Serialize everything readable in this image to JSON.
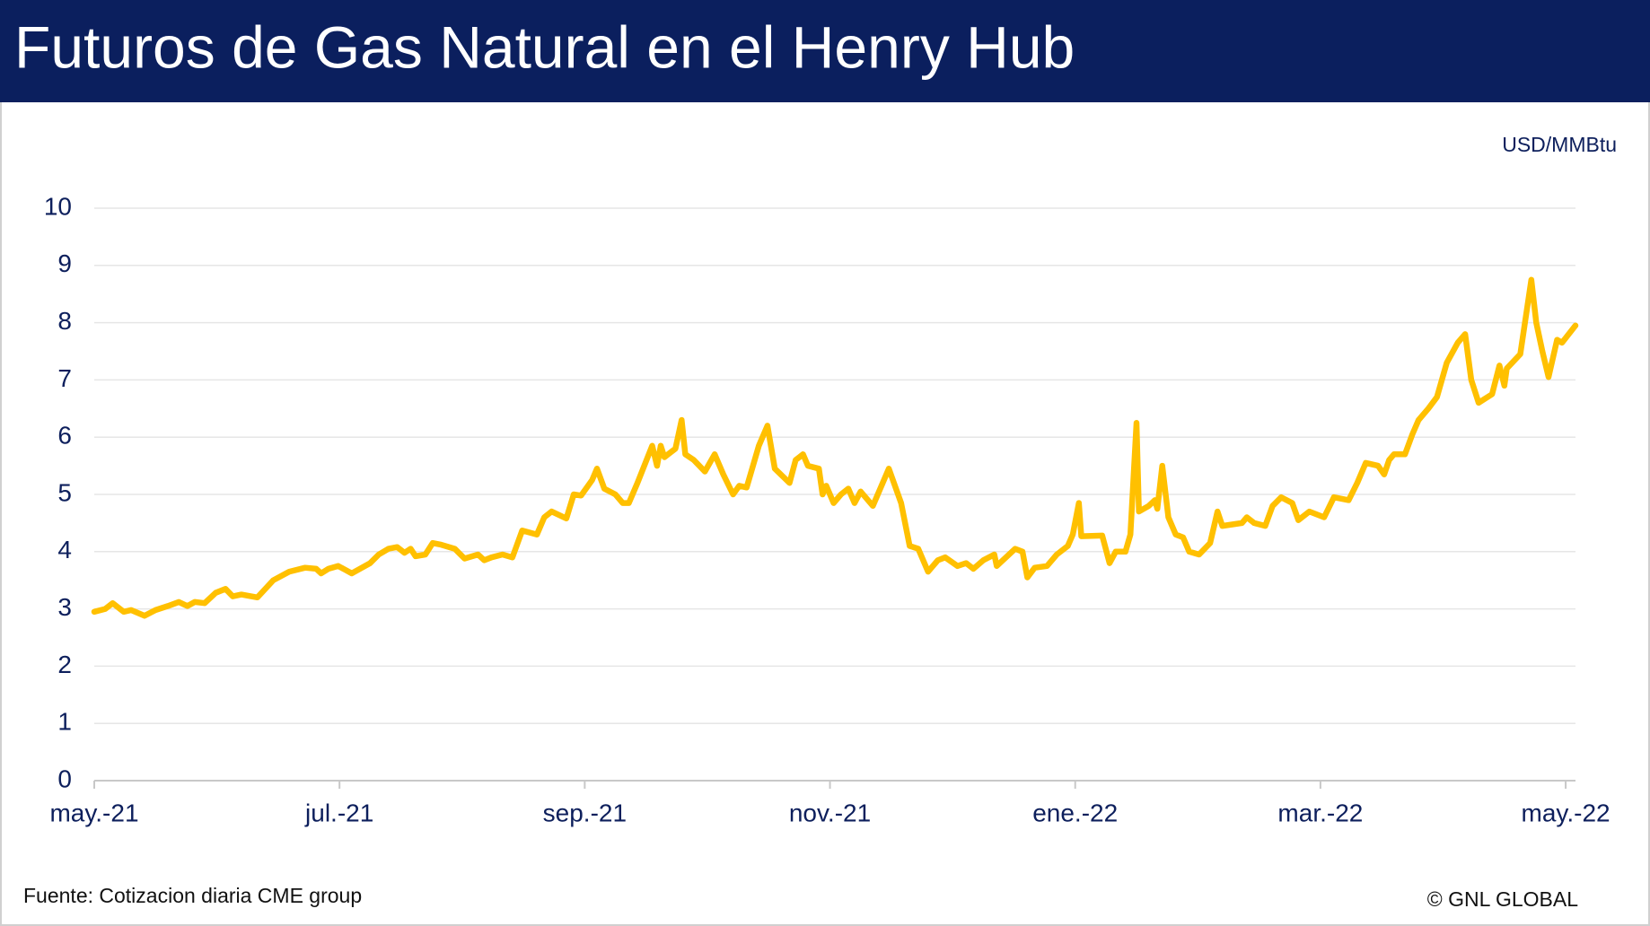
{
  "chart_data": {
    "type": "line",
    "title": "Futuros de Gas Natural en el Henry Hub",
    "unit_label": "USD/MMBtu",
    "source": "Fuente: Cotizacion diaria CME group",
    "credit": "© GNL GLOBAL",
    "color": "#FFC000",
    "grid": true,
    "x": [
      0,
      0.09,
      0.15,
      0.24,
      0.3,
      0.41,
      0.5,
      0.6,
      0.69,
      0.76,
      0.82,
      0.9,
      0.99,
      1.07,
      1.13,
      1.2,
      1.33,
      1.46,
      1.59,
      1.72,
      1.81,
      1.85,
      1.91,
      1.99,
      2.1,
      2.25,
      2.32,
      2.4,
      2.47,
      2.53,
      2.58,
      2.62,
      2.7,
      2.76,
      2.83,
      2.94,
      3.02,
      3.13,
      3.18,
      3.24,
      3.33,
      3.41,
      3.49,
      3.61,
      3.67,
      3.73,
      3.85,
      3.91,
      3.97,
      4.06,
      4.1,
      4.16,
      4.25,
      4.31,
      4.36,
      4.43,
      4.55,
      4.59,
      4.62,
      4.65,
      4.74,
      4.79,
      4.82,
      4.89,
      4.98,
      5.06,
      5.13,
      5.21,
      5.26,
      5.32,
      5.42,
      5.49,
      5.55,
      5.67,
      5.72,
      5.78,
      5.82,
      5.91,
      5.94,
      5.97,
      6.03,
      6.09,
      6.15,
      6.2,
      6.25,
      6.35,
      6.48,
      6.58,
      6.65,
      6.72,
      6.8,
      6.88,
      6.94,
      7.04,
      7.11,
      7.17,
      7.25,
      7.34,
      7.36,
      7.51,
      7.57,
      7.61,
      7.67,
      7.77,
      7.85,
      7.94,
      7.98,
      8.03,
      8.05,
      8.22,
      8.28,
      8.33,
      8.41,
      8.45,
      8.5,
      8.52,
      8.6,
      8.65,
      8.67,
      8.71,
      8.76,
      8.82,
      8.88,
      8.93,
      9.01,
      9.1,
      9.16,
      9.2,
      9.36,
      9.4,
      9.46,
      9.55,
      9.61,
      9.68,
      9.77,
      9.82,
      9.91,
      10.03,
      10.11,
      10.23,
      10.3,
      10.37,
      10.47,
      10.52,
      10.56,
      10.6,
      10.69,
      10.75,
      10.8,
      10.88,
      10.95,
      11.03,
      11.12,
      11.18,
      11.23,
      11.29,
      11.4,
      11.46,
      11.5,
      11.52,
      11.63,
      11.72,
      11.76,
      11.81,
      11.86,
      11.93,
      11.97,
      12.08
    ],
    "values": [
      2.95,
      3.0,
      3.1,
      2.95,
      2.98,
      2.88,
      2.98,
      3.05,
      3.12,
      3.05,
      3.12,
      3.1,
      3.28,
      3.35,
      3.22,
      3.25,
      3.2,
      3.5,
      3.65,
      3.72,
      3.7,
      3.62,
      3.7,
      3.75,
      3.62,
      3.8,
      3.95,
      4.05,
      4.08,
      3.98,
      4.05,
      3.92,
      3.95,
      4.15,
      4.12,
      4.05,
      3.88,
      3.95,
      3.85,
      3.9,
      3.95,
      3.9,
      4.37,
      4.3,
      4.6,
      4.7,
      4.58,
      5.0,
      4.98,
      5.25,
      5.45,
      5.1,
      5.0,
      4.85,
      4.85,
      5.2,
      5.85,
      5.5,
      5.85,
      5.65,
      5.8,
      6.3,
      5.7,
      5.6,
      5.4,
      5.7,
      5.35,
      5.0,
      5.15,
      5.12,
      5.85,
      6.2,
      5.45,
      5.2,
      5.6,
      5.7,
      5.5,
      5.45,
      5.0,
      5.15,
      4.85,
      5.0,
      5.1,
      4.85,
      5.05,
      4.8,
      5.45,
      4.85,
      4.1,
      4.05,
      3.65,
      3.85,
      3.9,
      3.75,
      3.8,
      3.7,
      3.85,
      3.95,
      3.75,
      4.05,
      4.0,
      3.55,
      3.72,
      3.75,
      3.95,
      4.1,
      4.3,
      4.85,
      4.27,
      4.28,
      3.8,
      4.0,
      4.0,
      4.3,
      6.25,
      4.7,
      4.8,
      4.9,
      4.75,
      5.5,
      4.6,
      4.3,
      4.25,
      4.0,
      3.95,
      4.15,
      4.7,
      4.45,
      4.5,
      4.6,
      4.5,
      4.45,
      4.8,
      4.95,
      4.85,
      4.55,
      4.7,
      4.6,
      4.95,
      4.9,
      5.2,
      5.55,
      5.5,
      5.35,
      5.6,
      5.7,
      5.7,
      6.05,
      6.3,
      6.5,
      6.7,
      7.3,
      7.65,
      7.8,
      7.0,
      6.6,
      6.75,
      7.25,
      6.9,
      7.2,
      7.45,
      8.75,
      8.0,
      7.5,
      7.05,
      7.7,
      7.65,
      7.95
    ],
    "xlim": [
      0,
      12.08
    ],
    "xticks": [
      {
        "value": 0,
        "label": "may.-21"
      },
      {
        "value": 2,
        "label": "jul.-21"
      },
      {
        "value": 4,
        "label": "sep.-21"
      },
      {
        "value": 6,
        "label": "nov.-21"
      },
      {
        "value": 8,
        "label": "ene.-22"
      },
      {
        "value": 10,
        "label": "mar.-22"
      },
      {
        "value": 12,
        "label": "may.-22"
      }
    ],
    "ylim": [
      0,
      10
    ],
    "yticks": [
      0,
      1,
      2,
      3,
      4,
      5,
      6,
      7,
      8,
      9,
      10
    ]
  }
}
